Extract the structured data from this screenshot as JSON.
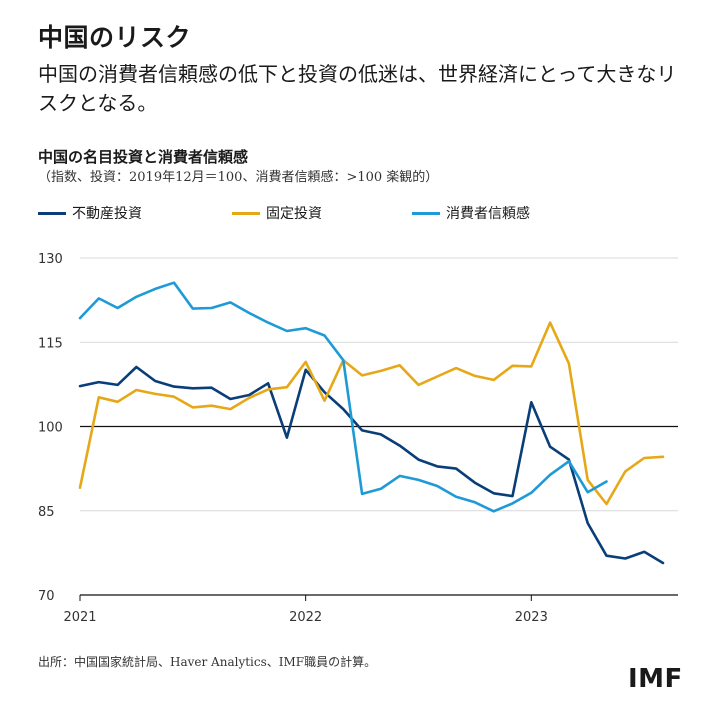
{
  "header": {
    "title": "中国のリスク",
    "subtitle": "中国の消費者信頼感の低下と投資の低迷は、世界経済にとって大きなリスクとなる。"
  },
  "chart_data": {
    "type": "line",
    "title": "中国の名目投資と消費者信頼感",
    "subtitle": "（指数、投資：2019年12月＝100、消費者信頼感：>100 楽観的）",
    "xlabel": "",
    "ylabel": "",
    "ylim": [
      70,
      130
    ],
    "yticks": [
      70,
      85,
      100,
      115,
      130
    ],
    "xticks": [
      {
        "label": "2021",
        "x": 0
      },
      {
        "label": "2022",
        "x": 12
      },
      {
        "label": "2023",
        "x": 24
      }
    ],
    "reference_line": 100,
    "legend_position": "top",
    "series": [
      {
        "name": "不動産投資",
        "color": "#0a3e78",
        "x": [
          0,
          1,
          2,
          3,
          4,
          5,
          6,
          7,
          8,
          9,
          10,
          11,
          12,
          13,
          14,
          15,
          16,
          17,
          18,
          19,
          20,
          21,
          22,
          23,
          24,
          25,
          26,
          27,
          28,
          29,
          30,
          31
        ],
        "values": [
          107.2,
          107.9,
          107.4,
          110.6,
          108.1,
          107.1,
          106.8,
          106.9,
          104.9,
          105.6,
          107.7,
          98.0,
          110.1,
          106.1,
          103.1,
          99.3,
          98.6,
          96.6,
          94.1,
          92.9,
          92.5,
          90.0,
          88.1,
          87.6,
          104.3,
          96.4,
          94.1,
          82.8,
          77.0,
          76.5,
          77.7,
          75.7
        ]
      },
      {
        "name": "固定投資",
        "color": "#e6a818",
        "x": [
          0,
          1,
          2,
          3,
          4,
          5,
          6,
          7,
          8,
          9,
          10,
          11,
          12,
          13,
          14,
          15,
          16,
          17,
          18,
          19,
          20,
          21,
          22,
          23,
          24,
          25,
          26,
          27,
          28,
          29,
          30,
          31
        ],
        "values": [
          89.1,
          105.2,
          104.4,
          106.5,
          105.8,
          105.3,
          103.4,
          103.7,
          103.1,
          105.1,
          106.6,
          107.0,
          111.5,
          104.6,
          111.8,
          109.1,
          109.9,
          110.9,
          107.4,
          108.9,
          110.4,
          109.0,
          108.3,
          110.8,
          110.7,
          118.5,
          111.2,
          90.5,
          86.2,
          92.0,
          94.4,
          94.6
        ]
      },
      {
        "name": "消費者信頼感",
        "color": "#1e9ad6",
        "x": [
          0,
          1,
          2,
          3,
          4,
          5,
          6,
          7,
          8,
          9,
          10,
          11,
          12,
          13,
          14,
          15,
          16,
          17,
          18,
          19,
          20,
          21,
          22,
          23,
          24,
          25,
          26,
          27,
          28
        ],
        "values": [
          119.3,
          122.8,
          121.1,
          123.1,
          124.5,
          125.6,
          121.0,
          121.1,
          122.1,
          120.2,
          118.5,
          117.0,
          117.5,
          116.2,
          111.8,
          88.0,
          88.9,
          91.2,
          90.5,
          89.4,
          87.5,
          86.5,
          84.9,
          86.3,
          88.2,
          91.4,
          93.8,
          88.3,
          90.2
        ]
      }
    ]
  },
  "footer": {
    "source": "出所：中国国家統計局、Haver Analytics、IMF職員の計算。",
    "logo": "IMF"
  }
}
